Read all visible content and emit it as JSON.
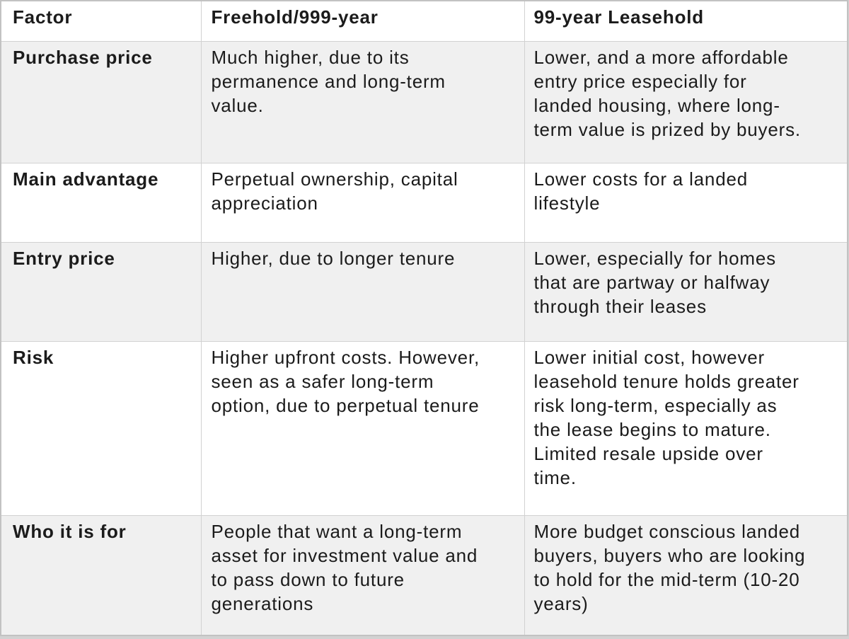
{
  "table": {
    "header": {
      "factor": "Factor",
      "freehold": "Freehold/999-year",
      "leasehold": "99-year Leasehold"
    },
    "rows": [
      {
        "factor": "Purchase price",
        "freehold": "Much higher, due to its permanence and long-term value.",
        "leasehold": "Lower, and a more affordable entry price especially for landed housing, where long-term value is prized by buyers."
      },
      {
        "factor": "Main advantage",
        "freehold": "Perpetual ownership, capital appreciation",
        "leasehold": "Lower costs for a landed lifestyle"
      },
      {
        "factor": "Entry price",
        "freehold": "Higher, due to longer tenure",
        "leasehold": "Lower, especially for homes that are partway or halfway through their leases"
      },
      {
        "factor": "Risk",
        "freehold": "Higher upfront costs. However, seen as a safer long-term option, due to perpetual tenure",
        "leasehold": "Lower initial cost, however leasehold tenure holds greater risk long-term, especially as the lease begins to mature. Limited resale upside over time."
      },
      {
        "factor": "Who it is for",
        "freehold": "People that want a long-term asset for investment value and to pass down to future generations",
        "leasehold": "More budget conscious landed buyers, buyers who are looking to hold for the mid-term (10-20 years)"
      }
    ]
  },
  "colors": {
    "row_alt_bg": "#f0f0f0",
    "row_bg": "#ffffff",
    "inner_border": "#d2d2d2",
    "outer_border": "#c2c2c2",
    "text": "#1b1b1b",
    "page_edge": "#d2d2d2"
  }
}
